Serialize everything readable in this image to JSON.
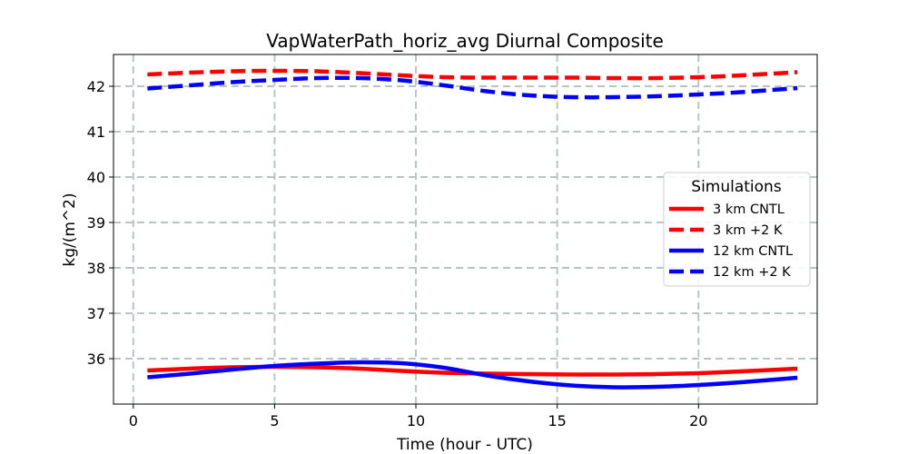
{
  "chart_data": {
    "type": "line",
    "title": "VapWaterPath_horiz_avg Diurnal Composite",
    "xlabel": "Time (hour - UTC)",
    "ylabel": "kg/(m^2)",
    "xlim": [
      -0.7,
      24.2
    ],
    "ylim": [
      35.0,
      42.7
    ],
    "xticks": [
      0,
      5,
      10,
      15,
      20
    ],
    "yticks": [
      36,
      37,
      38,
      39,
      40,
      41,
      42
    ],
    "grid": true,
    "legend": {
      "title": "Simulations",
      "placement": "center-right"
    },
    "x": [
      0.5,
      2,
      3.5,
      5,
      6.5,
      8,
      9.5,
      11,
      12.5,
      14,
      15.5,
      17,
      18.5,
      20,
      21.5,
      23.5
    ],
    "series": [
      {
        "name": "3 km CNTL",
        "color": "#ff0000",
        "dash": "solid",
        "values": [
          35.74,
          35.78,
          35.81,
          35.82,
          35.81,
          35.78,
          35.73,
          35.69,
          35.67,
          35.66,
          35.65,
          35.65,
          35.66,
          35.68,
          35.72,
          35.78
        ]
      },
      {
        "name": "3 km +2 K",
        "color": "#ff0000",
        "dash": "dashed",
        "values": [
          42.26,
          42.3,
          42.33,
          42.34,
          42.33,
          42.29,
          42.24,
          42.2,
          42.19,
          42.19,
          42.19,
          42.18,
          42.18,
          42.2,
          42.24,
          42.31
        ]
      },
      {
        "name": "12 km CNTL",
        "color": "#0000ff",
        "dash": "solid",
        "values": [
          35.59,
          35.67,
          35.76,
          35.84,
          35.89,
          35.92,
          35.9,
          35.8,
          35.63,
          35.5,
          35.41,
          35.37,
          35.38,
          35.42,
          35.48,
          35.58
        ]
      },
      {
        "name": "12 km +2 K",
        "color": "#0000ff",
        "dash": "dashed",
        "values": [
          41.95,
          42.02,
          42.09,
          42.14,
          42.18,
          42.18,
          42.13,
          42.02,
          41.89,
          41.8,
          41.76,
          41.76,
          41.78,
          41.82,
          41.87,
          41.96
        ]
      }
    ]
  }
}
